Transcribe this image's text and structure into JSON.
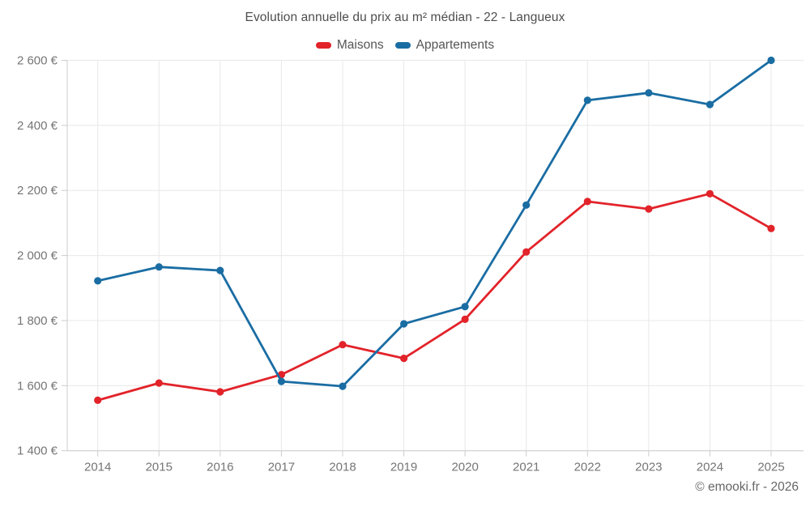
{
  "page": {
    "title": "Evolution annuelle du prix au m² médian - 22 - Langueux",
    "footer": "© emooki.fr - 2026"
  },
  "legend": {
    "items": [
      {
        "label": "Maisons",
        "color": "#e2232a"
      },
      {
        "label": "Appartements",
        "color": "#1a6da3"
      }
    ]
  },
  "chart_data": {
    "type": "line",
    "title": "Evolution annuelle du prix au m² médian - 22 - Langueux",
    "categories": [
      2014,
      2015,
      2016,
      2017,
      2018,
      2019,
      2020,
      2021,
      2022,
      2023,
      2024,
      2025
    ],
    "series": [
      {
        "name": "Maisons",
        "color": "#e2232a",
        "values": [
          1555,
          1608,
          1581,
          1634,
          1726,
          1684,
          1804,
          2011,
          2166,
          2143,
          2190,
          2083
        ]
      },
      {
        "name": "Appartements",
        "color": "#1a6da3",
        "values": [
          1922,
          1965,
          1954,
          1613,
          1598,
          1790,
          1843,
          2155,
          2477,
          2500,
          2464,
          2600
        ]
      }
    ],
    "xlabel": "",
    "ylabel": "",
    "ylim": [
      1400,
      2600
    ],
    "y_ticks": [
      {
        "value": 1400,
        "label": "1 400 €"
      },
      {
        "value": 1600,
        "label": "1 600 €"
      },
      {
        "value": 1800,
        "label": "1 800 €"
      },
      {
        "value": 2000,
        "label": "2 000 €"
      },
      {
        "value": 2200,
        "label": "2 200 €"
      },
      {
        "value": 2400,
        "label": "2 400 €"
      },
      {
        "value": 2600,
        "label": "2 600 €"
      }
    ],
    "grid": true,
    "legend_position": "top",
    "colors": {
      "gridline": "#e8e8e8",
      "axis": "#cccccc",
      "tick_text": "#757575"
    }
  }
}
